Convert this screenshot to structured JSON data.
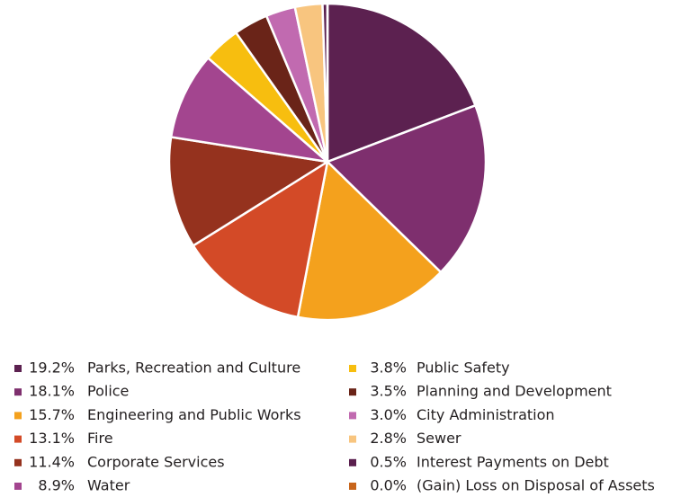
{
  "chart_data": {
    "type": "pie",
    "categories": [
      "Parks, Recreation and Culture",
      "Police",
      "Engineering and Public Works",
      "Fire",
      "Corporate Services",
      "Water",
      "Public Safety",
      "Planning and Development",
      "City Administration",
      "Sewer",
      "Interest Payments on Debt",
      "(Gain) Loss on Disposal of Assets"
    ],
    "values": [
      19.2,
      18.1,
      15.7,
      13.1,
      11.4,
      8.9,
      3.8,
      3.5,
      3.0,
      2.8,
      0.5,
      0.0
    ],
    "value_labels": [
      "19.2%",
      "18.1%",
      "15.7%",
      "13.1%",
      "11.4%",
      "8.9%",
      "3.8%",
      "3.5%",
      "3.0%",
      "2.8%",
      "0.5%",
      "0.0%"
    ],
    "colors": [
      "#5c2150",
      "#7e2f6e",
      "#f4a11d",
      "#d34a27",
      "#95321e",
      "#a3458f",
      "#f7be0f",
      "#6a2418",
      "#c16ab0",
      "#f8c57f",
      "#5a1f4e",
      "#c8651b"
    ]
  }
}
